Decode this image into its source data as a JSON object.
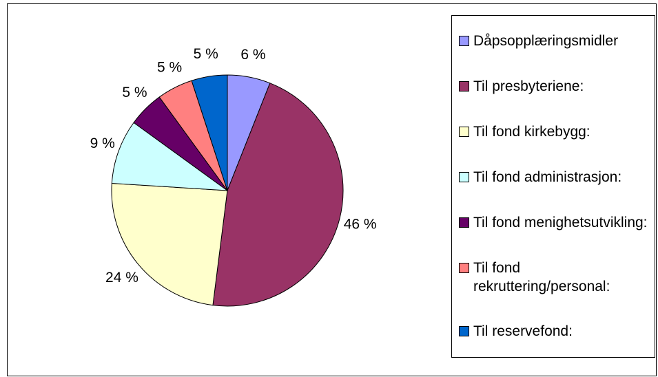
{
  "chart_data": {
    "type": "pie",
    "categories": [
      "Dåpsopplæringsmidler",
      "Til presbyteriene:",
      "Til fond kirkebygg:",
      "Til fond administrasjon:",
      "Til fond menighetsutvikling:",
      "Til fond rekruttering/personal:",
      "Til reservefond:"
    ],
    "values": [
      6,
      46,
      24,
      9,
      5,
      5,
      5
    ],
    "value_labels": [
      "6 %",
      "46 %",
      "24 %",
      "9 %",
      "5 %",
      "5 %",
      "5 %"
    ],
    "colors": [
      "#9999ff",
      "#993366",
      "#ffffcc",
      "#ccffff",
      "#660066",
      "#ff8080",
      "#0066cc"
    ],
    "legend": "right"
  }
}
